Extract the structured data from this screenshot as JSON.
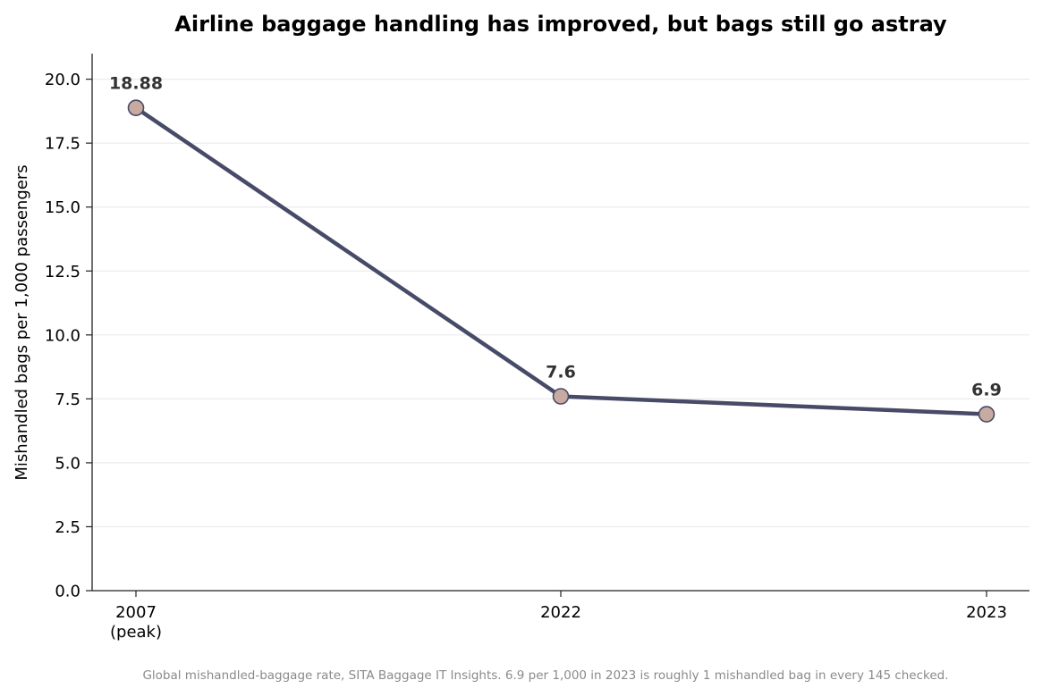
{
  "chart_data": {
    "type": "line",
    "title": "Airline baggage handling has improved, but bags still go astray",
    "xlabel": "",
    "ylabel": "Mishandled bags per 1,000 passengers",
    "categories": [
      "2007\n(peak)",
      "2022",
      "2023"
    ],
    "series": [
      {
        "values": [
          18.88,
          7.6,
          6.9
        ]
      }
    ],
    "data_labels": [
      "18.88",
      "7.6",
      "6.9"
    ],
    "ylim": [
      0,
      21
    ],
    "yticks": [
      0.0,
      2.5,
      5.0,
      7.5,
      10.0,
      12.5,
      15.0,
      17.5,
      20.0
    ],
    "ytick_labels": [
      "0.0",
      "2.5",
      "5.0",
      "7.5",
      "10.0",
      "12.5",
      "15.0",
      "17.5",
      "20.0"
    ],
    "grid": "horizontal",
    "colors": {
      "line": "#484b68",
      "marker_fill": "#c9aaa0",
      "marker_edge": "#484b68",
      "grid": "#ebebeb",
      "label": "#333333"
    }
  },
  "caption": "Global mishandled-baggage rate, SITA Baggage IT Insights. 6.9 per 1,000 in 2023 is roughly 1 mishandled bag in every 145 checked."
}
